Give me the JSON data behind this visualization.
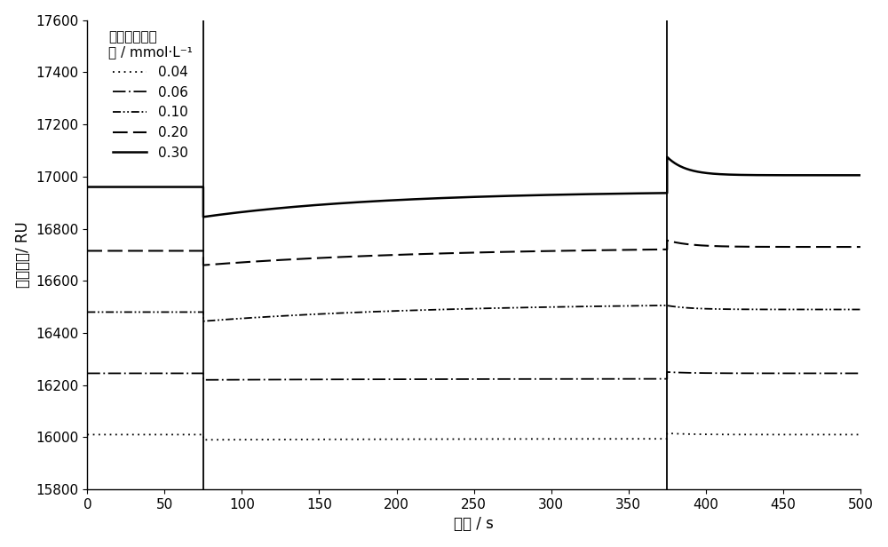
{
  "xlabel": "时间 / s",
  "ylabel": "信号响应/ RU",
  "xlim": [
    0,
    500
  ],
  "ylim": [
    15800,
    17600
  ],
  "xticks": [
    0,
    50,
    100,
    150,
    200,
    250,
    300,
    350,
    400,
    450,
    500
  ],
  "yticks": [
    15800,
    16000,
    16200,
    16400,
    16600,
    16800,
    17000,
    17200,
    17400,
    17600
  ],
  "t1": 75,
  "t2": 375,
  "legend_title_line1": "对应槸皮素浓",
  "legend_title_line2": "度 / mmol·L⁻¹",
  "curves": [
    {
      "label": "0.04",
      "linestyle": "dotted",
      "linewidth": 1.3,
      "base_level": 16010,
      "drop_amount": 20,
      "assoc_rise": 5,
      "assoc_tau": 200,
      "phase3_level": 16010,
      "spike_up": 5,
      "spike_tau": 15
    },
    {
      "label": "0.06",
      "linestyle": "loosely_dashdot",
      "linewidth": 1.3,
      "base_level": 16245,
      "drop_amount": 25,
      "assoc_rise": 5,
      "assoc_tau": 200,
      "phase3_level": 16245,
      "spike_up": 5,
      "spike_tau": 15
    },
    {
      "label": "0.10",
      "linestyle": "dashdotdot",
      "linewidth": 1.3,
      "base_level": 16480,
      "drop_amount": 35,
      "assoc_rise": 70,
      "assoc_tau": 150,
      "phase3_level": 16490,
      "spike_up": 15,
      "spike_tau": 15
    },
    {
      "label": "0.20",
      "linestyle": "dashed",
      "linewidth": 1.5,
      "base_level": 16715,
      "drop_amount": 55,
      "assoc_rise": 70,
      "assoc_tau": 150,
      "phase3_level": 16730,
      "spike_up": 25,
      "spike_tau": 15
    },
    {
      "label": "0.30",
      "linestyle": "solid",
      "linewidth": 1.8,
      "base_level": 16960,
      "drop_amount": 115,
      "assoc_rise": 100,
      "assoc_tau": 120,
      "phase3_level": 17005,
      "spike_up": 70,
      "spike_tau": 12
    }
  ],
  "background_color": "white",
  "font_size": 12,
  "tick_fontsize": 11
}
